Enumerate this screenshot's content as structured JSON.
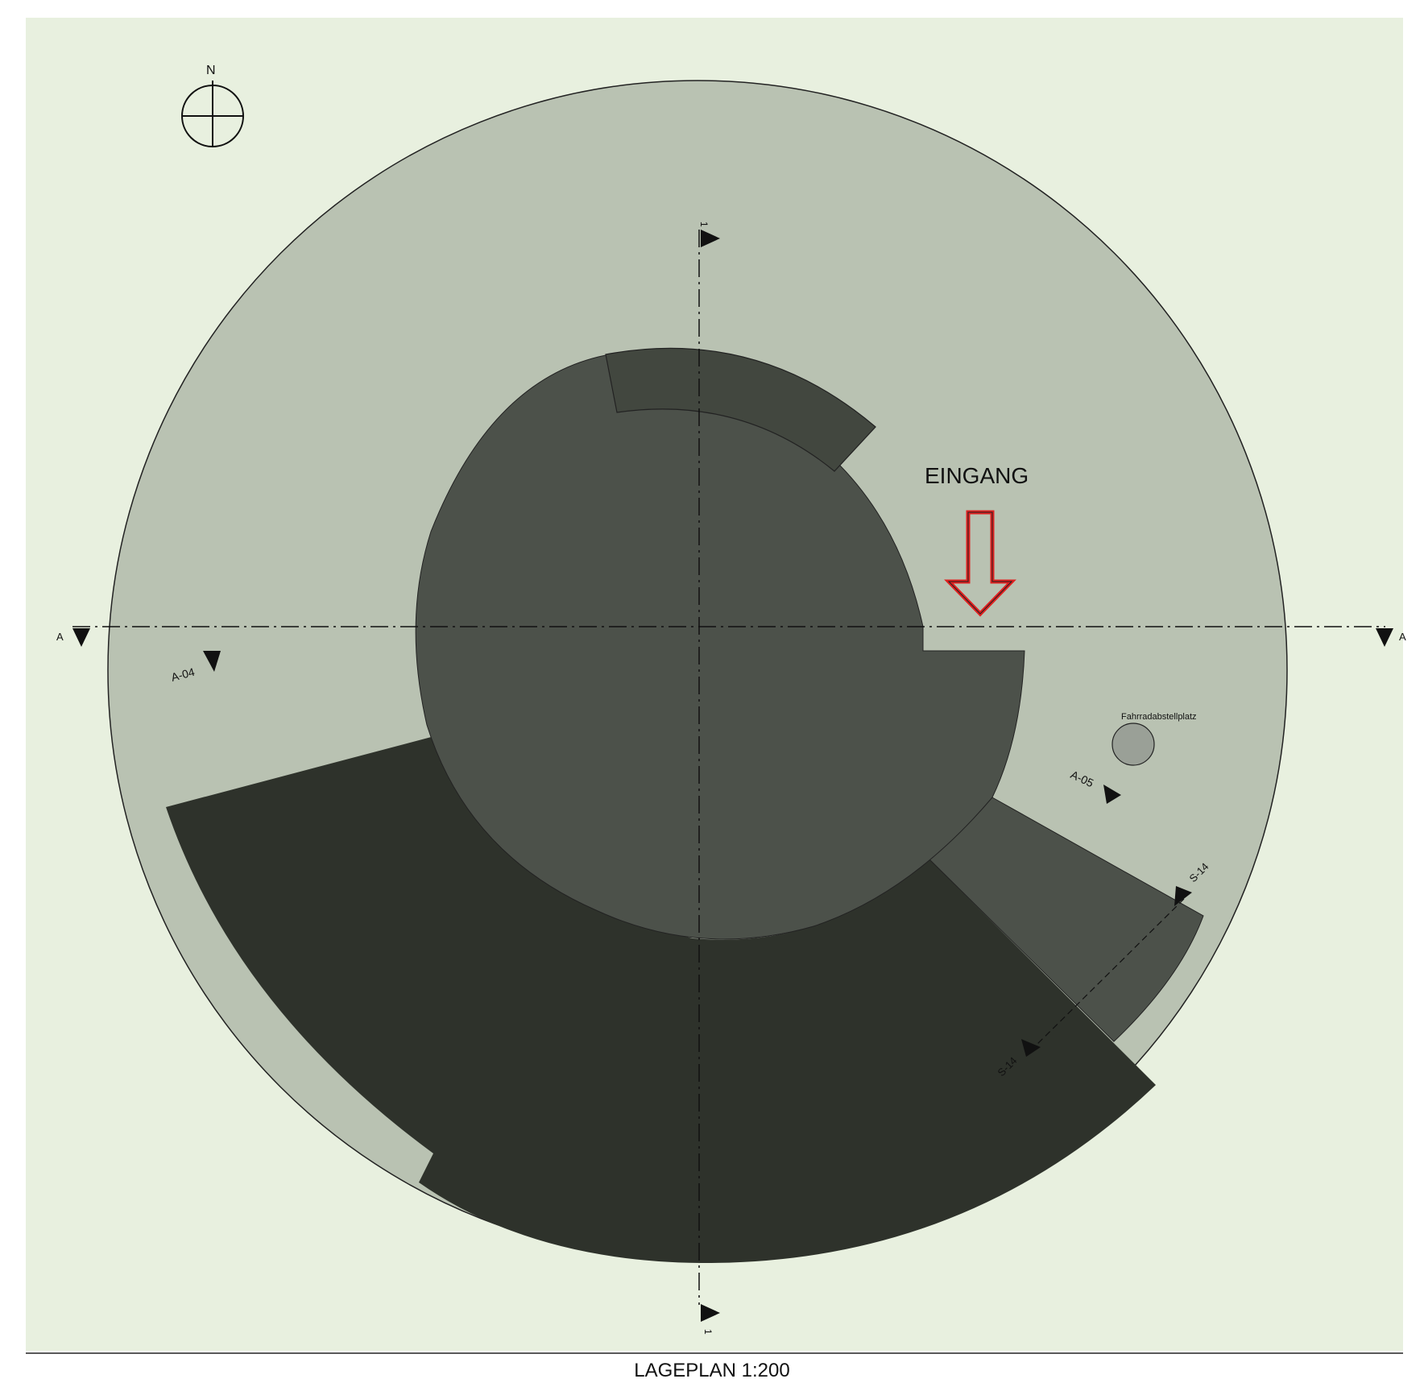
{
  "plan": {
    "entrance_label": "EINGANG",
    "bike_parking_label": "Fahrradabstellplatz",
    "north_label": "N",
    "caption": "LAGEPLAN 1:200",
    "section_markers": {
      "a_left": "A",
      "a_right": "A",
      "one_top": "1",
      "one_bottom": "1",
      "a04": "A-04",
      "a05": "A-05",
      "s14_top": "S-14",
      "s14_bottom": "S-14"
    },
    "colors": {
      "background": "#e8f0df",
      "site": "#b9c2b2",
      "inner_building": "#4c514a",
      "outer_wing": "#2e322b",
      "entrance_arrow": "#e02020",
      "bike_circle": "#9aa097"
    }
  }
}
